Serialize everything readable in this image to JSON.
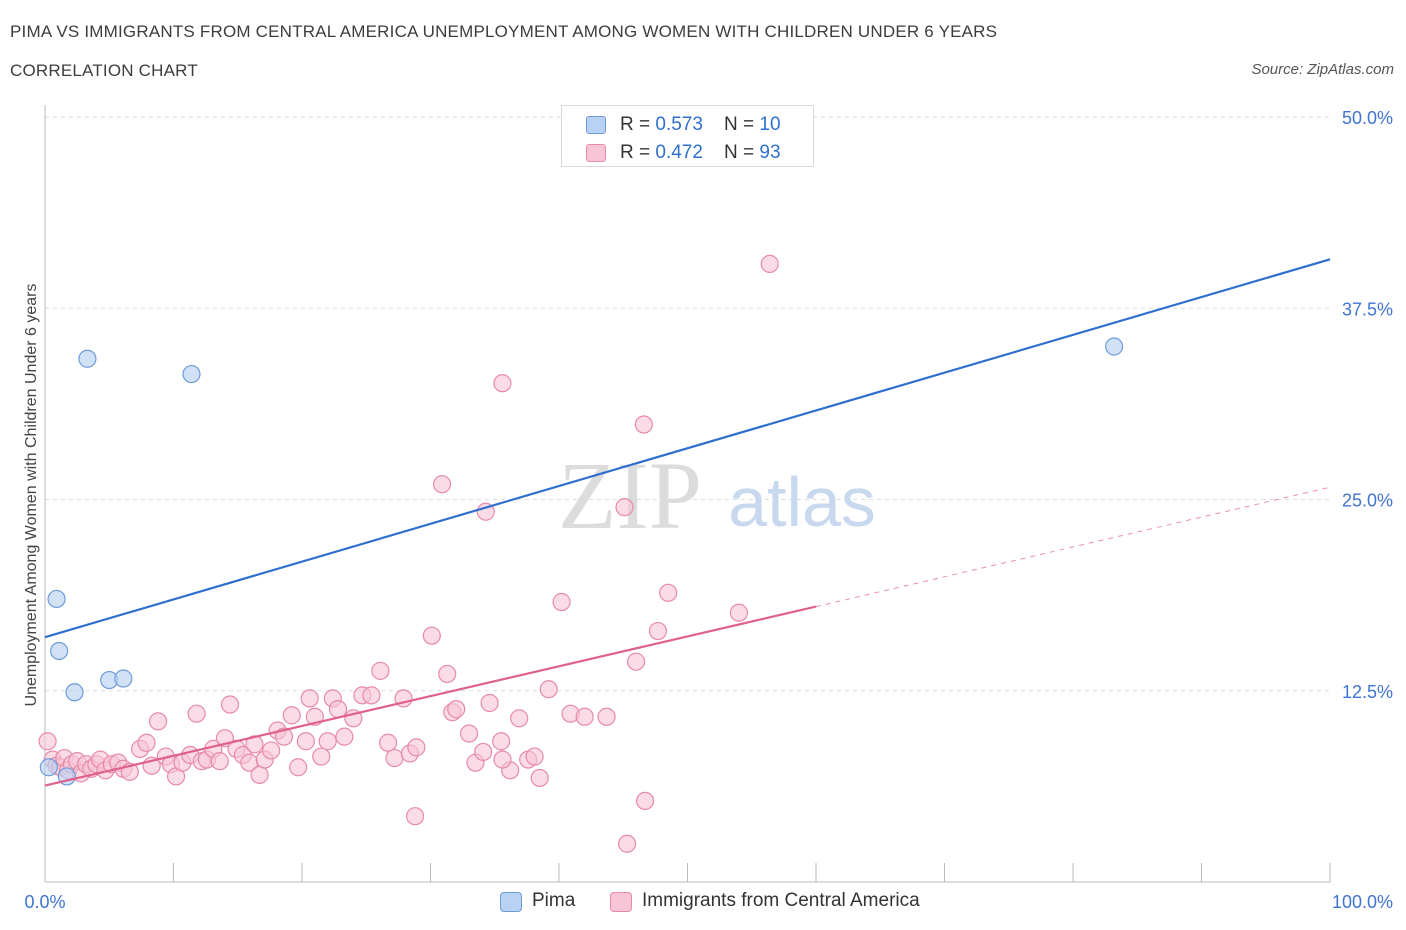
{
  "header": {
    "title": "PIMA VS IMMIGRANTS FROM CENTRAL AMERICA UNEMPLOYMENT AMONG WOMEN WITH CHILDREN UNDER 6 YEARS",
    "subtitle": "CORRELATION CHART",
    "source": "Source: ZipAtlas.com"
  },
  "colors": {
    "pima": "#2f6fcf",
    "pima_fill": "#b9d2f3",
    "immigrants": "#e0608d",
    "immigrants_fill": "#f8c5d6",
    "axis_label": "#3f74d2",
    "grid": "#dddddd"
  },
  "legend": {
    "rows": [
      {
        "r_label": "R = ",
        "r_value": "0.573",
        "n_label": "N = ",
        "n_value": "10"
      },
      {
        "r_label": "R = ",
        "r_value": "0.472",
        "n_label": "N = ",
        "n_value": "93"
      }
    ]
  },
  "watermark": {
    "zip": "ZIP",
    "atlas": "atlas"
  },
  "chart_data": {
    "type": "scatter",
    "title": "PIMA VS IMMIGRANTS FROM CENTRAL AMERICA UNEMPLOYMENT AMONG WOMEN WITH CHILDREN UNDER 6 YEARS",
    "xlabel": "",
    "ylabel": "Unemployment Among Women with Children Under 6 years",
    "xlim": [
      0,
      100
    ],
    "ylim": [
      0,
      50
    ],
    "x_tick_labels": [
      "0.0%",
      "100.0%"
    ],
    "y_tick_labels": [
      "12.5%",
      "25.0%",
      "37.5%",
      "50.0%"
    ],
    "y_ticks": [
      12.5,
      25,
      37.5,
      50
    ],
    "grid": true,
    "legend_position": "bottom",
    "series": [
      {
        "name": "Pima",
        "color": "#2f6fcf",
        "points": [
          [
            0.3,
            7.5
          ],
          [
            1.7,
            6.9
          ],
          [
            0.9,
            18.5
          ],
          [
            1.1,
            15.1
          ],
          [
            2.3,
            12.4
          ],
          [
            5.0,
            13.2
          ],
          [
            6.1,
            13.3
          ],
          [
            3.3,
            34.2
          ],
          [
            11.4,
            33.2
          ],
          [
            83.2,
            35.0
          ]
        ],
        "trendline": {
          "x": [
            0,
            100
          ],
          "y": [
            16.0,
            40.7
          ]
        }
      },
      {
        "name": "Immigrants from Central America",
        "color": "#e0608d",
        "points": [
          [
            0.2,
            9.2
          ],
          [
            0.6,
            8.0
          ],
          [
            0.9,
            7.6
          ],
          [
            1.2,
            7.5
          ],
          [
            1.5,
            8.1
          ],
          [
            1.8,
            7.3
          ],
          [
            2.1,
            7.7
          ],
          [
            2.5,
            7.9
          ],
          [
            2.8,
            7.1
          ],
          [
            3.2,
            7.7
          ],
          [
            3.6,
            7.4
          ],
          [
            4.0,
            7.7
          ],
          [
            4.3,
            8.0
          ],
          [
            4.7,
            7.3
          ],
          [
            5.2,
            7.7
          ],
          [
            5.7,
            7.8
          ],
          [
            6.1,
            7.4
          ],
          [
            6.6,
            7.2
          ],
          [
            7.4,
            8.7
          ],
          [
            7.9,
            9.1
          ],
          [
            8.3,
            7.6
          ],
          [
            8.8,
            10.5
          ],
          [
            9.4,
            8.2
          ],
          [
            9.8,
            7.7
          ],
          [
            10.2,
            6.9
          ],
          [
            10.7,
            7.8
          ],
          [
            11.3,
            8.3
          ],
          [
            11.8,
            11.0
          ],
          [
            12.2,
            7.9
          ],
          [
            12.6,
            8.0
          ],
          [
            13.1,
            8.7
          ],
          [
            13.6,
            7.9
          ],
          [
            14.0,
            9.4
          ],
          [
            14.4,
            11.6
          ],
          [
            14.9,
            8.7
          ],
          [
            15.4,
            8.3
          ],
          [
            15.9,
            7.8
          ],
          [
            16.3,
            9.0
          ],
          [
            16.7,
            7.0
          ],
          [
            17.1,
            8.0
          ],
          [
            17.6,
            8.6
          ],
          [
            18.1,
            9.9
          ],
          [
            18.6,
            9.5
          ],
          [
            19.2,
            10.9
          ],
          [
            19.7,
            7.5
          ],
          [
            20.3,
            9.2
          ],
          [
            20.6,
            12.0
          ],
          [
            21.0,
            10.8
          ],
          [
            21.5,
            8.2
          ],
          [
            22.0,
            9.2
          ],
          [
            22.4,
            12.0
          ],
          [
            22.8,
            11.3
          ],
          [
            23.3,
            9.5
          ],
          [
            24.0,
            10.7
          ],
          [
            24.7,
            12.2
          ],
          [
            25.4,
            12.2
          ],
          [
            26.1,
            13.8
          ],
          [
            26.7,
            9.1
          ],
          [
            27.2,
            8.1
          ],
          [
            27.9,
            12.0
          ],
          [
            28.4,
            8.4
          ],
          [
            28.9,
            8.8
          ],
          [
            30.1,
            16.1
          ],
          [
            31.3,
            13.6
          ],
          [
            31.7,
            11.1
          ],
          [
            32.0,
            11.3
          ],
          [
            33.0,
            9.7
          ],
          [
            33.5,
            7.8
          ],
          [
            34.1,
            8.5
          ],
          [
            34.6,
            11.7
          ],
          [
            35.5,
            9.2
          ],
          [
            36.2,
            7.3
          ],
          [
            36.9,
            10.7
          ],
          [
            37.6,
            8.0
          ],
          [
            38.1,
            8.2
          ],
          [
            38.5,
            6.8
          ],
          [
            39.2,
            12.6
          ],
          [
            40.2,
            18.3
          ],
          [
            40.9,
            11.0
          ],
          [
            42.0,
            10.8
          ],
          [
            43.7,
            10.8
          ],
          [
            46.0,
            14.4
          ],
          [
            47.7,
            16.4
          ],
          [
            48.5,
            18.9
          ],
          [
            45.1,
            24.5
          ],
          [
            34.3,
            24.2
          ],
          [
            30.9,
            26.0
          ],
          [
            35.6,
            32.6
          ],
          [
            46.6,
            29.9
          ],
          [
            56.4,
            40.4
          ],
          [
            35.6,
            8.0
          ],
          [
            28.8,
            4.3
          ],
          [
            45.3,
            2.5
          ],
          [
            46.7,
            5.3
          ],
          [
            54.0,
            17.6
          ]
        ],
        "trendline": {
          "x": [
            0,
            60
          ],
          "y": [
            6.3,
            18.0
          ]
        },
        "trendline_extension": {
          "x": [
            60,
            100
          ],
          "y": [
            18.0,
            25.8
          ]
        }
      }
    ]
  }
}
